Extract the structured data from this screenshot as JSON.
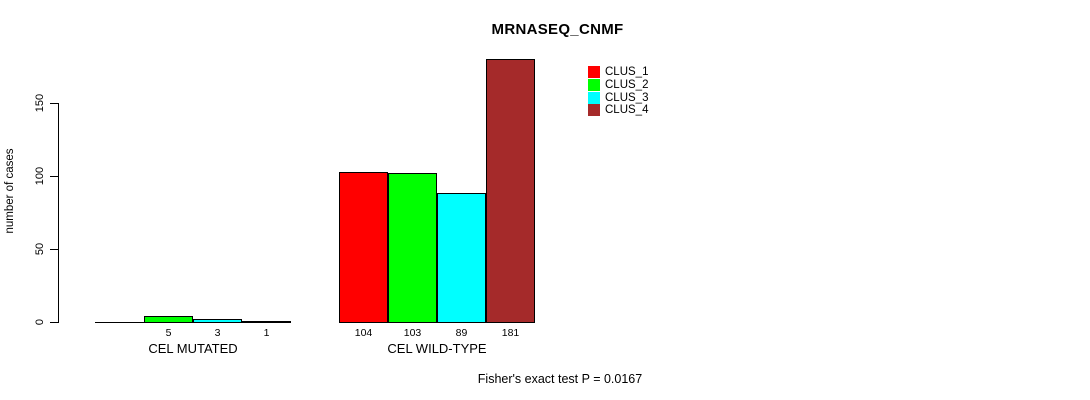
{
  "title": "MRNASEQ_CNMF",
  "caption": "Fisher's exact test P = 0.0167",
  "chart_data": {
    "type": "bar",
    "title": "MRNASEQ_CNMF",
    "xlabel": "",
    "ylabel": "number of cases",
    "ylim": [
      0,
      185
    ],
    "yticks": [
      0,
      50,
      100,
      150
    ],
    "grid": false,
    "legend_position": "inside-top-right",
    "categories": [
      "CEL MUTATED",
      "CEL WILD-TYPE"
    ],
    "series": [
      {
        "name": "CLUS_1",
        "color": "#FF0000",
        "values": [
          0,
          104
        ]
      },
      {
        "name": "CLUS_2",
        "color": "#00FF00",
        "values": [
          5,
          103
        ]
      },
      {
        "name": "CLUS_3",
        "color": "#00FFFF",
        "values": [
          3,
          89
        ]
      },
      {
        "name": "CLUS_4",
        "color": "#A52A2A",
        "values": [
          1,
          181
        ]
      }
    ],
    "bar_value_labels": [
      [
        "",
        "5",
        "3",
        "1"
      ],
      [
        "104",
        "103",
        "89",
        "181"
      ]
    ],
    "annotation": "Fisher's exact test P = 0.0167"
  }
}
